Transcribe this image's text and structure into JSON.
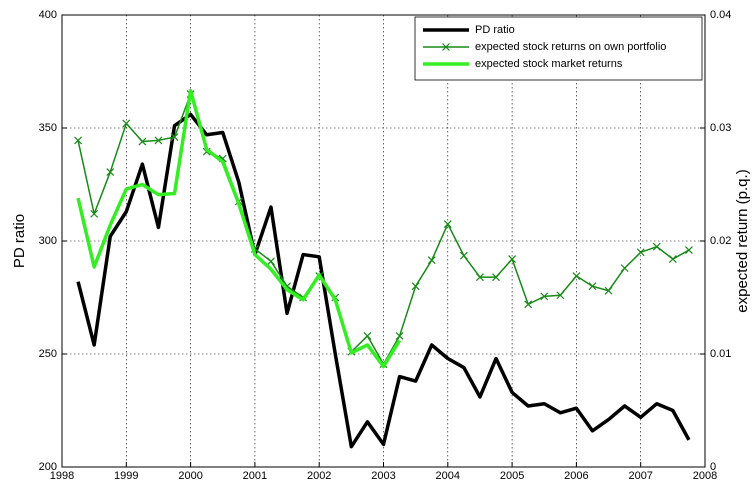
{
  "chart_data": {
    "type": "line",
    "ylabel": "PD ratio",
    "y2label": "expected return (p.q.)",
    "x": [
      1998.25,
      1998.5,
      1998.75,
      1999,
      1999.25,
      1999.5,
      1999.75,
      2000,
      2000.25,
      2000.5,
      2000.75,
      2001,
      2001.25,
      2001.5,
      2001.75,
      2002,
      2002.25,
      2002.5,
      2002.75,
      2003,
      2003.25,
      2003.5,
      2003.75,
      2004,
      2004.25,
      2004.5,
      2004.75,
      2005,
      2005.25,
      2005.5,
      2005.75,
      2006,
      2006.25,
      2006.5,
      2006.75,
      2007,
      2007.25,
      2007.5,
      2007.75
    ],
    "xlim": [
      1998,
      2008
    ],
    "xticks": [
      1998,
      1999,
      2000,
      2001,
      2002,
      2003,
      2004,
      2005,
      2006,
      2007,
      2008
    ],
    "ylim": [
      200,
      400
    ],
    "yticks": [
      200,
      250,
      300,
      350,
      400
    ],
    "y2lim": [
      0,
      0.04
    ],
    "y2ticks": [
      0,
      0.01,
      0.02,
      0.03,
      0.04
    ],
    "grid": true,
    "legend": "northeast",
    "series": [
      {
        "name": "PD ratio",
        "color": "#000000",
        "width": 3.5,
        "marker": null,
        "axis": "y",
        "values": [
          282,
          254,
          302,
          313,
          334,
          306,
          351,
          356,
          347,
          348,
          326,
          294,
          315,
          268,
          294,
          293,
          250,
          209,
          220,
          210,
          240,
          238,
          254,
          248,
          244,
          231,
          248,
          233,
          227,
          228,
          224,
          226,
          216,
          221,
          227,
          222,
          228,
          225,
          212
        ]
      },
      {
        "name": "expected stock returns on own portfolio",
        "color": "#168a16",
        "width": 1.5,
        "marker": "x",
        "axis": "y2",
        "values": [
          0.0289,
          0.0224,
          0.0261,
          0.0304,
          0.0288,
          0.0289,
          0.0292,
          0.033,
          0.0279,
          0.0273,
          0.0235,
          0.0193,
          0.0182,
          0.016,
          0.015,
          0.0169,
          0.015,
          0.0102,
          0.0116,
          0.0091,
          0.0116,
          0.016,
          0.0183,
          0.0215,
          0.0187,
          0.0168,
          0.0168,
          0.0184,
          0.0144,
          0.0151,
          0.0152,
          0.0169,
          0.016,
          0.0156,
          0.0176,
          0.019,
          0.0195,
          0.0184,
          0.0192
        ]
      },
      {
        "name": "expected stock market returns",
        "color": "#33ee22",
        "width": 3.5,
        "marker": null,
        "axis": "y2",
        "values": [
          0.0238,
          0.0177,
          0.0214,
          0.0246,
          0.025,
          0.0241,
          0.0242,
          0.0333,
          0.0281,
          0.027,
          0.0233,
          0.0188,
          0.0175,
          0.0157,
          0.0148,
          0.017,
          0.0148,
          0.0101,
          0.0108,
          0.0089,
          0.0112,
          null,
          null,
          null,
          null,
          null,
          null,
          null,
          null,
          null,
          null,
          null,
          null,
          null,
          null,
          null,
          null,
          null,
          null
        ]
      }
    ]
  }
}
